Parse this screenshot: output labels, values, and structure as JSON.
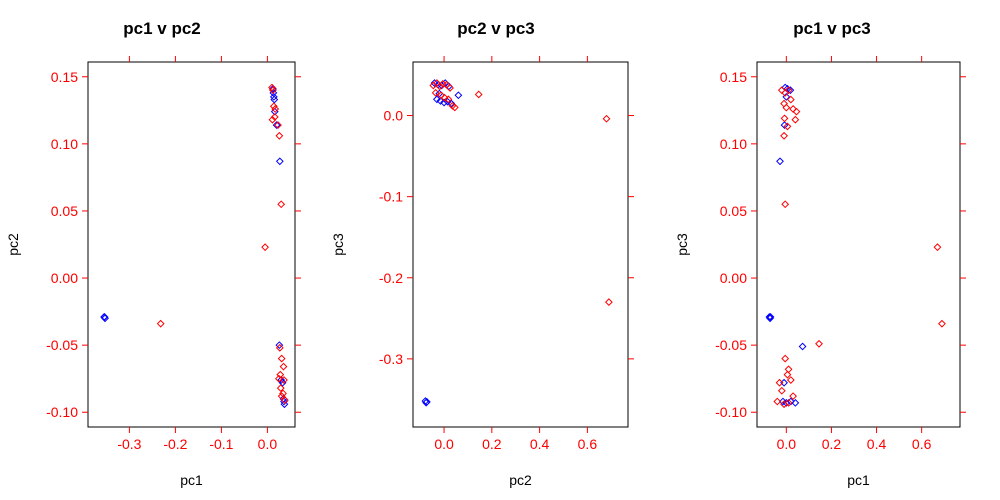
{
  "chart_data": [
    {
      "type": "scatter",
      "title": "pc1 v pc2",
      "xlabel": "pc1",
      "ylabel": "pc2",
      "xlim": [
        -0.39,
        0.06
      ],
      "ylim": [
        -0.111,
        0.161
      ],
      "xticks": [
        -0.3,
        -0.2,
        -0.1,
        0.0
      ],
      "xtick_labels": [
        "-0.3",
        "-0.2",
        "-0.1",
        "0.0"
      ],
      "yticks": [
        -0.1,
        -0.05,
        0.0,
        0.05,
        0.1,
        0.15
      ],
      "ytick_labels": [
        "-0.10",
        "-0.05",
        "0.00",
        "0.05",
        "0.10",
        "0.15"
      ],
      "grid": false,
      "series": [
        {
          "color": "#0000ff",
          "points": [
            [
              -0.355,
              -0.029
            ],
            [
              -0.353,
              -0.03
            ],
            [
              -0.354,
              -0.029
            ],
            [
              0.012,
              0.141
            ],
            [
              0.013,
              0.138
            ],
            [
              0.014,
              0.135
            ],
            [
              0.015,
              0.133
            ],
            [
              0.016,
              0.124
            ],
            [
              0.02,
              0.114
            ],
            [
              0.027,
              0.087
            ],
            [
              0.026,
              -0.05
            ],
            [
              0.03,
              -0.076
            ],
            [
              0.033,
              -0.078
            ],
            [
              0.035,
              -0.09
            ],
            [
              0.036,
              -0.092
            ],
            [
              0.037,
              -0.094
            ]
          ]
        },
        {
          "color": "#ff0000",
          "points": [
            [
              -0.232,
              -0.034
            ],
            [
              -0.005,
              0.023
            ],
            [
              0.03,
              0.055
            ],
            [
              0.01,
              0.142
            ],
            [
              0.012,
              0.14
            ],
            [
              0.014,
              0.128
            ],
            [
              0.017,
              0.126
            ],
            [
              0.016,
              0.12
            ],
            [
              0.011,
              0.118
            ],
            [
              0.023,
              0.114
            ],
            [
              0.026,
              0.106
            ],
            [
              0.027,
              -0.052
            ],
            [
              0.031,
              -0.06
            ],
            [
              0.035,
              -0.066
            ],
            [
              0.028,
              -0.072
            ],
            [
              0.025,
              -0.075
            ],
            [
              0.029,
              -0.082
            ],
            [
              0.034,
              -0.086
            ],
            [
              0.031,
              -0.088
            ],
            [
              0.036,
              -0.076
            ],
            [
              0.038,
              -0.091
            ]
          ]
        }
      ]
    },
    {
      "type": "scatter",
      "title": "pc2 v pc3",
      "xlabel": "pc2",
      "ylabel": "pc3",
      "xlim": [
        -0.13,
        0.77
      ],
      "ylim": [
        -0.384,
        0.066
      ],
      "xticks": [
        0.0,
        0.2,
        0.4,
        0.6
      ],
      "xtick_labels": [
        "0.0",
        "0.2",
        "0.4",
        "0.6"
      ],
      "yticks": [
        -0.3,
        -0.2,
        -0.1,
        0.0
      ],
      "ytick_labels": [
        "-0.3",
        "-0.2",
        "-0.1",
        "0.0"
      ],
      "grid": false,
      "series": [
        {
          "color": "#0000ff",
          "points": [
            [
              -0.078,
              -0.352
            ],
            [
              -0.075,
              -0.354
            ],
            [
              -0.072,
              -0.353
            ],
            [
              -0.04,
              0.04
            ],
            [
              -0.025,
              0.038
            ],
            [
              -0.01,
              0.037
            ],
            [
              0.005,
              0.04
            ],
            [
              0.02,
              0.036
            ],
            [
              -0.03,
              0.02
            ],
            [
              -0.015,
              0.018
            ],
            [
              0.0,
              0.016
            ],
            [
              0.015,
              0.017
            ],
            [
              0.03,
              0.015
            ],
            [
              0.06,
              0.025
            ],
            [
              -0.02,
              0.027
            ]
          ]
        },
        {
          "color": "#ff0000",
          "points": [
            [
              -0.045,
              0.037
            ],
            [
              -0.03,
              0.04
            ],
            [
              -0.018,
              0.036
            ],
            [
              -0.005,
              0.039
            ],
            [
              0.01,
              0.038
            ],
            [
              0.025,
              0.034
            ],
            [
              -0.035,
              0.028
            ],
            [
              -0.012,
              0.025
            ],
            [
              0.002,
              0.022
            ],
            [
              0.018,
              0.02
            ],
            [
              0.035,
              0.012
            ],
            [
              0.045,
              0.01
            ],
            [
              0.145,
              0.026
            ],
            [
              0.68,
              -0.004
            ],
            [
              0.69,
              -0.23
            ]
          ]
        }
      ]
    },
    {
      "type": "scatter",
      "title": "pc1 v pc3",
      "xlabel": "pc1",
      "ylabel": "pc3",
      "xlim": [
        -0.13,
        0.77
      ],
      "ylim": [
        -0.111,
        0.161
      ],
      "xticks": [
        0.0,
        0.2,
        0.4,
        0.6
      ],
      "xtick_labels": [
        "0.0",
        "0.2",
        "0.4",
        "0.6"
      ],
      "yticks": [
        -0.1,
        -0.05,
        0.0,
        0.05,
        0.1,
        0.15
      ],
      "ytick_labels": [
        "-0.10",
        "-0.05",
        "0.00",
        "0.05",
        "0.10",
        "0.15"
      ],
      "grid": false,
      "series": [
        {
          "color": "#0000ff",
          "points": [
            [
              -0.075,
              -0.029
            ],
            [
              -0.072,
              -0.03
            ],
            [
              -0.07,
              -0.029
            ],
            [
              -0.005,
              0.142
            ],
            [
              0.005,
              0.141
            ],
            [
              0.018,
              0.14
            ],
            [
              0.0,
              0.135
            ],
            [
              -0.008,
              0.114
            ],
            [
              -0.028,
              0.087
            ],
            [
              0.072,
              -0.051
            ],
            [
              -0.01,
              -0.078
            ],
            [
              -0.015,
              -0.092
            ],
            [
              0.0,
              -0.093
            ],
            [
              0.02,
              -0.092
            ],
            [
              0.04,
              -0.093
            ]
          ]
        },
        {
          "color": "#ff0000",
          "points": [
            [
              -0.02,
              0.14
            ],
            [
              -0.005,
              0.138
            ],
            [
              0.01,
              0.14
            ],
            [
              0.02,
              0.133
            ],
            [
              -0.01,
              0.13
            ],
            [
              0.0,
              0.127
            ],
            [
              0.03,
              0.126
            ],
            [
              0.045,
              0.124
            ],
            [
              -0.008,
              0.119
            ],
            [
              0.04,
              0.118
            ],
            [
              0.005,
              0.113
            ],
            [
              -0.01,
              0.106
            ],
            [
              -0.005,
              0.055
            ],
            [
              0.145,
              -0.049
            ],
            [
              0.67,
              0.023
            ],
            [
              0.69,
              -0.034
            ],
            [
              -0.005,
              -0.06
            ],
            [
              0.01,
              -0.068
            ],
            [
              0.005,
              -0.072
            ],
            [
              0.02,
              -0.076
            ],
            [
              -0.03,
              -0.078
            ],
            [
              -0.02,
              -0.084
            ],
            [
              0.03,
              -0.088
            ],
            [
              -0.04,
              -0.092
            ],
            [
              -0.01,
              -0.094
            ],
            [
              0.01,
              -0.093
            ]
          ]
        }
      ]
    }
  ]
}
